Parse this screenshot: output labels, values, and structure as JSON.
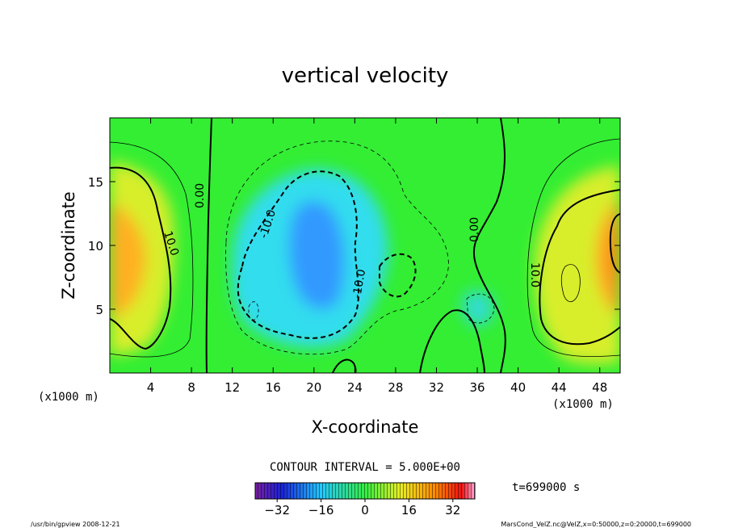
{
  "chart_data": {
    "type": "heatmap",
    "title": "vertical velocity",
    "xlabel": "X-coordinate",
    "ylabel": "Z-coordinate",
    "x_unit": "(x1000 m)",
    "y_unit": "(x1000 m)",
    "xlim": [
      0,
      50
    ],
    "ylim": [
      0,
      20
    ],
    "x_ticks": [
      "4",
      "8",
      "12",
      "16",
      "20",
      "24",
      "28",
      "32",
      "36",
      "40",
      "44",
      "48"
    ],
    "y_ticks": [
      "5",
      "10",
      "15"
    ],
    "contour_interval_label": "CONTOUR INTERVAL = 5.000E+00",
    "contour_labels": [
      "10.0",
      "0.00",
      "-10.0",
      "-10.0",
      "0.00",
      "10.0"
    ],
    "colorbar": {
      "range": [
        -40,
        40
      ],
      "ticks": [
        "-32",
        "-16",
        "0",
        "16",
        "32"
      ]
    },
    "time_label": "t=699000 s",
    "grid": false
  },
  "footer": {
    "left": "/usr/bin/gpview 2008-12-21",
    "right": "MarsCond_VelZ.nc@VelZ,x=0:50000,z=0:20000,t=699000"
  },
  "colors": {
    "background": "#33ee33",
    "positive_peak": "#ff8800",
    "negative_peak": "#1166ff"
  }
}
